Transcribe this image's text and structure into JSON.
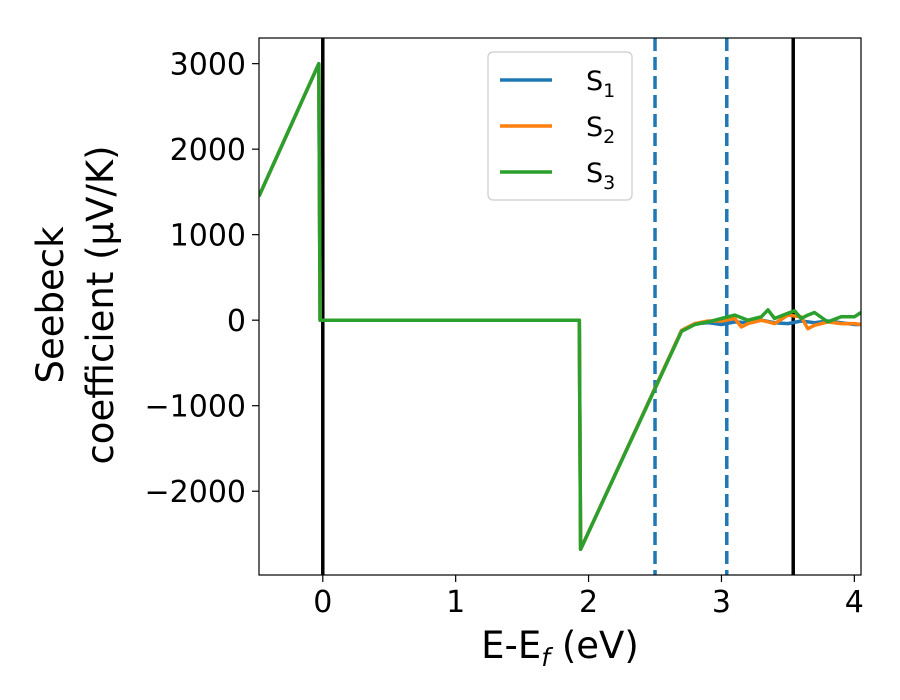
{
  "chart_data": {
    "type": "line",
    "xlabel": "E-E",
    "xlabel_sub": "f",
    "xlabel_unit": " (eV)",
    "ylabel_line1": "Seebeck",
    "ylabel_line2": "coefficient  (μV/K)",
    "xlim": [
      -0.48,
      4.05
    ],
    "ylim": [
      -2980,
      3300
    ],
    "xticks": [
      0,
      1,
      2,
      3,
      4
    ],
    "xtick_labels": [
      "0",
      "1",
      "2",
      "3",
      "4"
    ],
    "yticks": [
      3000,
      2000,
      1000,
      0,
      -1000,
      -2000
    ],
    "ytick_labels": [
      "3000",
      "2000",
      "1000",
      "0",
      "−1000",
      "−2000"
    ],
    "grid": false,
    "legend_position": "top-center",
    "vertical_lines": [
      {
        "x": 0.0,
        "style": "solid",
        "color": "#000000"
      },
      {
        "x": 2.5,
        "style": "dashed",
        "color": "#1f77b4"
      },
      {
        "x": 3.04,
        "style": "dashed",
        "color": "#1f77b4"
      },
      {
        "x": 3.54,
        "style": "solid",
        "color": "#000000"
      }
    ],
    "series": [
      {
        "name": "S",
        "sub": "1",
        "color": "#1f77b4",
        "x": [
          -0.48,
          -0.03,
          -0.02,
          1.93,
          1.94,
          2.7,
          2.8,
          2.9,
          3.0,
          3.1,
          3.2,
          3.3,
          3.4,
          3.5,
          3.6,
          3.7,
          3.8,
          3.9,
          4.0,
          4.05
        ],
        "y": [
          1450,
          3000,
          0,
          0,
          -2680,
          -120,
          -40,
          -30,
          -50,
          -20,
          -30,
          0,
          -30,
          -40,
          -10,
          -30,
          -10,
          -30,
          -50,
          -50
        ]
      },
      {
        "name": "S",
        "sub": "2",
        "color": "#ff7f0e",
        "x": [
          -0.48,
          -0.03,
          -0.02,
          1.93,
          1.94,
          2.7,
          2.8,
          2.9,
          3.0,
          3.1,
          3.15,
          3.2,
          3.3,
          3.4,
          3.5,
          3.6,
          3.65,
          3.7,
          3.8,
          3.9,
          4.0,
          4.05
        ],
        "y": [
          1450,
          3000,
          0,
          0,
          -2680,
          -120,
          -40,
          -10,
          -10,
          20,
          -80,
          -40,
          0,
          -40,
          60,
          40,
          -100,
          -60,
          -20,
          -40,
          -40,
          -50
        ]
      },
      {
        "name": "S",
        "sub": "3",
        "color": "#2ca02c",
        "x": [
          -0.48,
          -0.03,
          -0.02,
          1.93,
          1.94,
          2.7,
          2.8,
          2.9,
          3.0,
          3.1,
          3.2,
          3.25,
          3.3,
          3.35,
          3.4,
          3.5,
          3.55,
          3.6,
          3.65,
          3.7,
          3.8,
          3.9,
          4.0,
          4.05
        ],
        "y": [
          1450,
          3000,
          0,
          0,
          -2680,
          -130,
          -50,
          -20,
          20,
          60,
          0,
          20,
          40,
          120,
          20,
          80,
          110,
          20,
          60,
          90,
          -20,
          40,
          40,
          90
        ]
      }
    ]
  }
}
